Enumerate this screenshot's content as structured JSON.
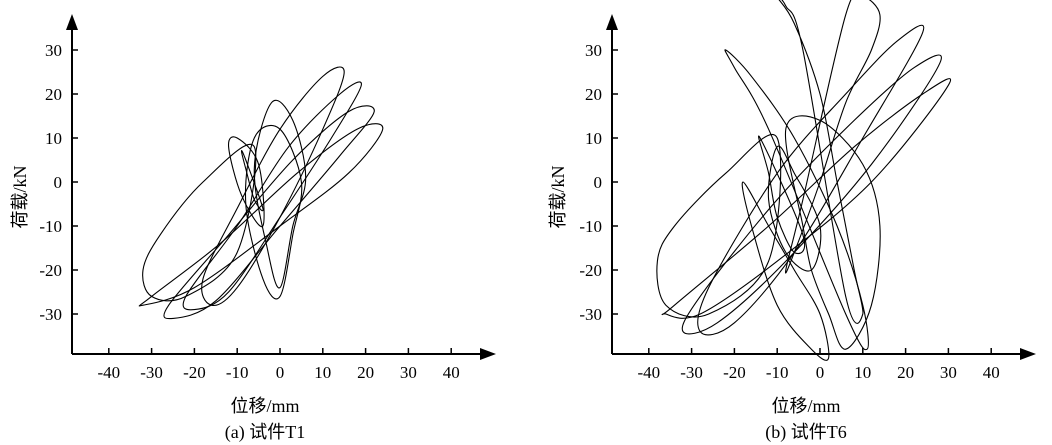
{
  "chart_data": [
    {
      "type": "line",
      "caption": "(a) 试件T1",
      "xlabel": "位移/mm",
      "ylabel": "荷载/kN",
      "xlim": [
        -50,
        50
      ],
      "ylim": [
        -40,
        40
      ],
      "xticks": [
        "-40",
        "-30",
        "-20",
        "-10",
        "0",
        "10",
        "20",
        "30",
        "40"
      ],
      "yticks": [
        "30",
        "20",
        "10",
        "0",
        "-10",
        "-20",
        "-30"
      ],
      "grid": false,
      "series": [
        {
          "loops": [
            {
              "x": [
                6,
                3,
                -2,
                -6,
                -3,
                0,
                3,
                6
              ],
              "y": [
                1,
                14,
                18,
                3,
                -15,
                -24,
                -10,
                1
              ]
            },
            {
              "x": [
                5,
                0,
                -6,
                -8,
                -4,
                0,
                3,
                5
              ],
              "y": [
                0,
                12,
                10,
                -5,
                -22,
                -26,
                -12,
                0
              ]
            },
            {
              "x": [
                -5,
                -10,
                -12,
                -9,
                -4,
                -5
              ],
              "y": [
                4,
                10,
                8,
                -3,
                -10,
                4
              ]
            },
            {
              "x": [
                -8,
                -9,
                -8,
                -6,
                -4,
                -8
              ],
              "y": [
                5,
                7,
                3,
                -4,
                -6,
                5
              ]
            },
            {
              "x": [
                15,
                10,
                0,
                -10,
                -18,
                -16,
                -10,
                0,
                10,
                15
              ],
              "y": [
                25,
                24,
                12,
                -6,
                -22,
                -28,
                -24,
                -8,
                12,
                25
              ]
            },
            {
              "x": [
                19,
                14,
                2,
                -10,
                -22,
                -20,
                -12,
                0,
                12,
                19
              ],
              "y": [
                22,
                20,
                8,
                -10,
                -26,
                -29,
                -25,
                -8,
                10,
                22
              ]
            },
            {
              "x": [
                22,
                16,
                3,
                -12,
                -26,
                -25,
                -15,
                0,
                14,
                22
              ],
              "y": [
                16,
                16,
                5,
                -12,
                -28,
                -31,
                -27,
                -10,
                6,
                16
              ]
            },
            {
              "x": [
                24,
                18,
                4,
                -14,
                -30,
                -32,
                -20,
                0,
                16,
                24
              ],
              "y": [
                12,
                12,
                2,
                -14,
                -26,
                -28,
                -24,
                -10,
                2,
                12
              ]
            },
            {
              "x": [
                -6,
                -18,
                -28,
                -32,
                -30,
                -22,
                -10,
                -6
              ],
              "y": [
                8,
                0,
                -12,
                -20,
                -26,
                -26,
                -16,
                8
              ]
            }
          ]
        }
      ]
    },
    {
      "type": "line",
      "caption": "(b) 试件T6",
      "xlabel": "位移/mm",
      "ylabel": "荷载/kN",
      "xlim": [
        -50,
        50
      ],
      "ylim": [
        -40,
        40
      ],
      "xticks": [
        "-40",
        "-30",
        "-20",
        "-10",
        "0",
        "10",
        "20",
        "30",
        "40"
      ],
      "yticks": [
        "30",
        "20",
        "10",
        "0",
        "-10",
        "-20",
        "-30"
      ],
      "grid": false,
      "series": [
        {
          "loops": [
            {
              "x": [
                -14,
                -12,
                -10,
                -6,
                -4,
                -14
              ],
              "y": [
                10,
                2,
                -8,
                -16,
                -12,
                10
              ]
            },
            {
              "x": [
                -10,
                -6,
                0,
                -2,
                -8,
                -12,
                -10
              ],
              "y": [
                8,
                2,
                -10,
                -20,
                -16,
                -4,
                8
              ]
            },
            {
              "x": [
                -12,
                -20,
                -22,
                -16,
                -6,
                4,
                10,
                11,
                6,
                -12
              ],
              "y": [
                12,
                26,
                30,
                24,
                10,
                -10,
                -28,
                -38,
                -30,
                12
              ]
            },
            {
              "x": [
                -12,
                -6,
                0,
                2,
                -2,
                -10,
                -16,
                -18,
                -12
              ],
              "y": [
                -10,
                -20,
                -30,
                -40,
                -38,
                -28,
                -10,
                0,
                -10
              ]
            },
            {
              "x": [
                -4,
                -2,
                2,
                6,
                12,
                14,
                10,
                0,
                -8,
                -4
              ],
              "y": [
                -10,
                -20,
                -30,
                -38,
                -28,
                -10,
                4,
                14,
                12,
                -10
              ]
            },
            {
              "x": [
                -4,
                -8,
                -10,
                -6,
                0,
                4,
                8,
                10,
                6,
                -4
              ],
              "y": [
                30,
                40,
                42,
                36,
                20,
                0,
                -20,
                -30,
                -26,
                30
              ]
            },
            {
              "x": [
                6,
                10,
                14,
                12,
                6,
                0,
                -6,
                -8,
                -4,
                6
              ],
              "y": [
                38,
                42,
                38,
                30,
                18,
                0,
                -16,
                -20,
                -4,
                38
              ]
            },
            {
              "x": [
                24,
                18,
                6,
                -10,
                -26,
                -28,
                -20,
                -6,
                10,
                24
              ],
              "y": [
                34,
                32,
                20,
                2,
                -24,
                -34,
                -32,
                -16,
                10,
                34
              ]
            },
            {
              "x": [
                28,
                22,
                8,
                -10,
                -28,
                -32,
                -24,
                -8,
                12,
                28
              ],
              "y": [
                27,
                26,
                14,
                -4,
                -26,
                -34,
                -32,
                -18,
                4,
                27
              ]
            },
            {
              "x": [
                30,
                24,
                8,
                -12,
                -34,
                -36,
                -28,
                -10,
                12,
                30
              ],
              "y": [
                22,
                20,
                8,
                -10,
                -28,
                -30,
                -30,
                -18,
                0,
                22
              ]
            },
            {
              "x": [
                -10,
                -22,
                -34,
                -38,
                -36,
                -26,
                -12,
                -10
              ],
              "y": [
                10,
                2,
                -10,
                -18,
                -28,
                -30,
                -18,
                10
              ]
            }
          ]
        }
      ]
    }
  ]
}
